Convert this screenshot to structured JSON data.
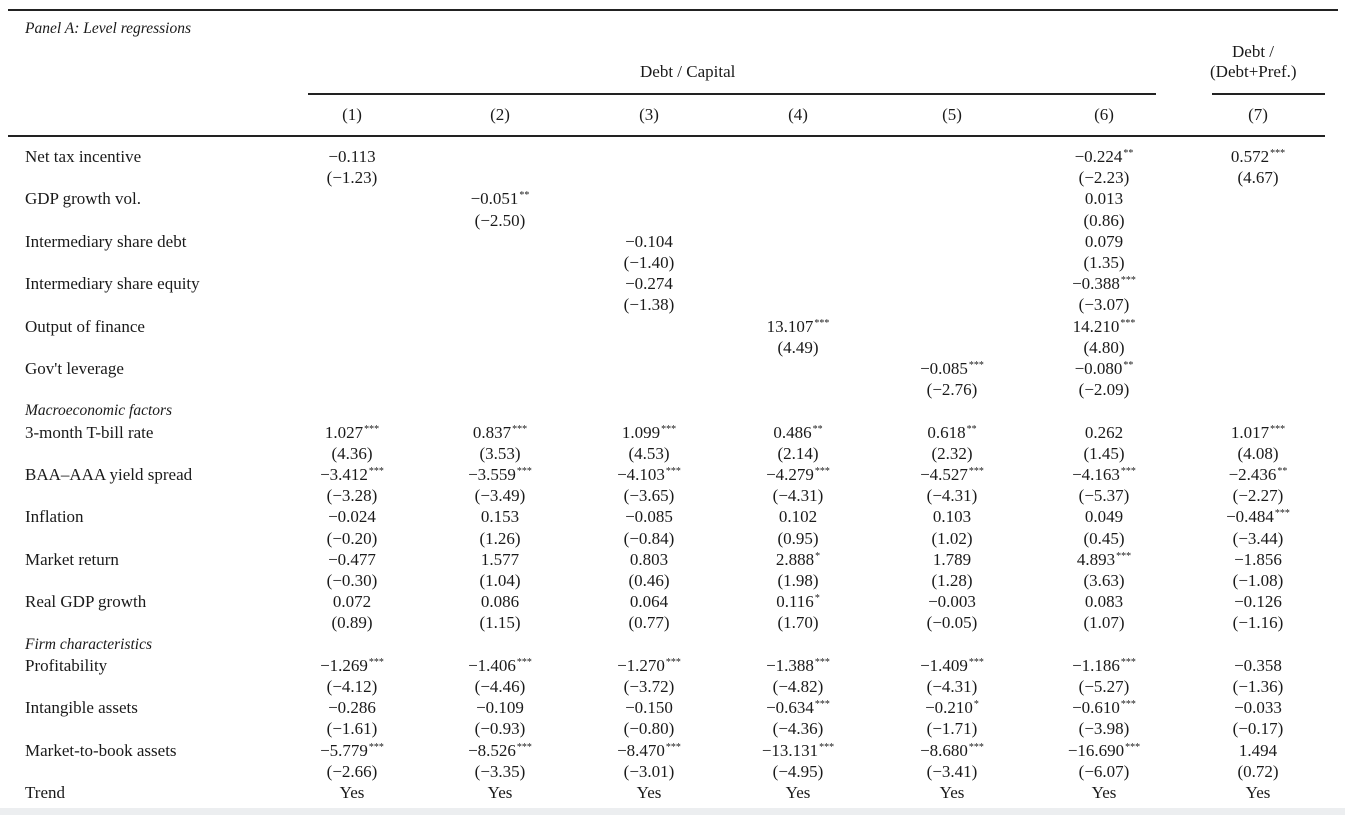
{
  "panel_title": "Panel A: Level regressions",
  "header": {
    "group1": "Debt / Capital",
    "group2_line1": "Debt /",
    "group2_line2": "(Debt+Pref.)",
    "columns": [
      "(1)",
      "(2)",
      "(3)",
      "(4)",
      "(5)",
      "(6)",
      "(7)"
    ]
  },
  "sections": [
    {
      "title": "",
      "rows": [
        {
          "label": "Net tax incentive",
          "cells": [
            [
              "−0.113",
              "",
              "(−1.23)"
            ],
            null,
            null,
            null,
            null,
            [
              "−0.224",
              "**",
              "(−2.23)"
            ],
            [
              "0.572",
              "***",
              "(4.67)"
            ]
          ]
        },
        {
          "label": "GDP growth vol.",
          "cells": [
            null,
            [
              "−0.051",
              "**",
              "(−2.50)"
            ],
            null,
            null,
            null,
            [
              "0.013",
              "",
              "(0.86)"
            ],
            null
          ]
        },
        {
          "label": "Intermediary share debt",
          "cells": [
            null,
            null,
            [
              "−0.104",
              "",
              "(−1.40)"
            ],
            null,
            null,
            [
              "0.079",
              "",
              "(1.35)"
            ],
            null
          ]
        },
        {
          "label": "Intermediary share equity",
          "cells": [
            null,
            null,
            [
              "−0.274",
              "",
              "(−1.38)"
            ],
            null,
            null,
            [
              "−0.388",
              "***",
              "(−3.07)"
            ],
            null
          ]
        },
        {
          "label": "Output of finance",
          "cells": [
            null,
            null,
            null,
            [
              "13.107",
              "***",
              "(4.49)"
            ],
            null,
            [
              "14.210",
              "***",
              "(4.80)"
            ],
            null
          ]
        },
        {
          "label": "Gov't leverage",
          "cells": [
            null,
            null,
            null,
            null,
            [
              "−0.085",
              "***",
              "(−2.76)"
            ],
            [
              "−0.080",
              "**",
              "(−2.09)"
            ],
            null
          ]
        }
      ]
    },
    {
      "title": "Macroeconomic factors",
      "rows": [
        {
          "label": "3-month T-bill rate",
          "cells": [
            [
              "1.027",
              "***",
              "(4.36)"
            ],
            [
              "0.837",
              "***",
              "(3.53)"
            ],
            [
              "1.099",
              "***",
              "(4.53)"
            ],
            [
              "0.486",
              "**",
              "(2.14)"
            ],
            [
              "0.618",
              "**",
              "(2.32)"
            ],
            [
              "0.262",
              "",
              "(1.45)"
            ],
            [
              "1.017",
              "***",
              "(4.08)"
            ]
          ]
        },
        {
          "label": "BAA–AAA yield spread",
          "cells": [
            [
              "−3.412",
              "***",
              "(−3.28)"
            ],
            [
              "−3.559",
              "***",
              "(−3.49)"
            ],
            [
              "−4.103",
              "***",
              "(−3.65)"
            ],
            [
              "−4.279",
              "***",
              "(−4.31)"
            ],
            [
              "−4.527",
              "***",
              "(−4.31)"
            ],
            [
              "−4.163",
              "***",
              "(−5.37)"
            ],
            [
              "−2.436",
              "**",
              "(−2.27)"
            ]
          ]
        },
        {
          "label": "Inflation",
          "cells": [
            [
              "−0.024",
              "",
              "(−0.20)"
            ],
            [
              "0.153",
              "",
              "(1.26)"
            ],
            [
              "−0.085",
              "",
              "(−0.84)"
            ],
            [
              "0.102",
              "",
              "(0.95)"
            ],
            [
              "0.103",
              "",
              "(1.02)"
            ],
            [
              "0.049",
              "",
              "(0.45)"
            ],
            [
              "−0.484",
              "***",
              "(−3.44)"
            ]
          ]
        },
        {
          "label": "Market return",
          "cells": [
            [
              "−0.477",
              "",
              "(−0.30)"
            ],
            [
              "1.577",
              "",
              "(1.04)"
            ],
            [
              "0.803",
              "",
              "(0.46)"
            ],
            [
              "2.888",
              "*",
              "(1.98)"
            ],
            [
              "1.789",
              "",
              "(1.28)"
            ],
            [
              "4.893",
              "***",
              "(3.63)"
            ],
            [
              "−1.856",
              "",
              "(−1.08)"
            ]
          ]
        },
        {
          "label": "Real GDP growth",
          "cells": [
            [
              "0.072",
              "",
              "(0.89)"
            ],
            [
              "0.086",
              "",
              "(1.15)"
            ],
            [
              "0.064",
              "",
              "(0.77)"
            ],
            [
              "0.116",
              "*",
              "(1.70)"
            ],
            [
              "−0.003",
              "",
              "(−0.05)"
            ],
            [
              "0.083",
              "",
              "(1.07)"
            ],
            [
              "−0.126",
              "",
              "(−1.16)"
            ]
          ]
        }
      ]
    },
    {
      "title": "Firm characteristics",
      "rows": [
        {
          "label": "Profitability",
          "cells": [
            [
              "−1.269",
              "***",
              "(−4.12)"
            ],
            [
              "−1.406",
              "***",
              "(−4.46)"
            ],
            [
              "−1.270",
              "***",
              "(−3.72)"
            ],
            [
              "−1.388",
              "***",
              "(−4.82)"
            ],
            [
              "−1.409",
              "***",
              "(−4.31)"
            ],
            [
              "−1.186",
              "***",
              "(−5.27)"
            ],
            [
              "−0.358",
              "",
              "(−1.36)"
            ]
          ]
        },
        {
          "label": "Intangible assets",
          "cells": [
            [
              "−0.286",
              "",
              "(−1.61)"
            ],
            [
              "−0.109",
              "",
              "(−0.93)"
            ],
            [
              "−0.150",
              "",
              "(−0.80)"
            ],
            [
              "−0.634",
              "***",
              "(−4.36)"
            ],
            [
              "−0.210",
              "*",
              "(−1.71)"
            ],
            [
              "−0.610",
              "***",
              "(−3.98)"
            ],
            [
              "−0.033",
              "",
              "(−0.17)"
            ]
          ]
        },
        {
          "label": "Market-to-book assets",
          "cells": [
            [
              "−5.779",
              "***",
              "(−2.66)"
            ],
            [
              "−8.526",
              "***",
              "(−3.35)"
            ],
            [
              "−8.470",
              "***",
              "(−3.01)"
            ],
            [
              "−13.131",
              "***",
              "(−4.95)"
            ],
            [
              "−8.680",
              "***",
              "(−3.41)"
            ],
            [
              "−16.690",
              "***",
              "(−6.07)"
            ],
            [
              "1.494",
              "",
              "(0.72)"
            ]
          ]
        }
      ]
    }
  ],
  "trend": {
    "label": "Trend",
    "values": [
      "Yes",
      "Yes",
      "Yes",
      "Yes",
      "Yes",
      "Yes",
      "Yes"
    ]
  }
}
